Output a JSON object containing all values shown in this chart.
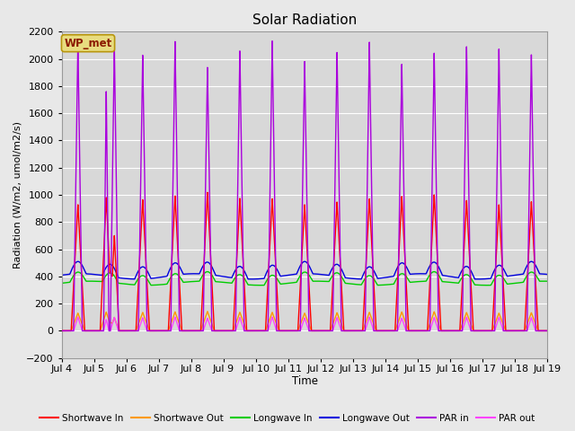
{
  "title": "Solar Radiation",
  "ylabel": "Radiation (W/m2, umol/m2/s)",
  "xlabel": "Time",
  "ylim": [
    -200,
    2200
  ],
  "yticks": [
    -200,
    0,
    200,
    400,
    600,
    800,
    1000,
    1200,
    1400,
    1600,
    1800,
    2000,
    2200
  ],
  "total_days": 15,
  "xtick_labels": [
    "Jul 4",
    "Jul 5",
    "Jul 6",
    "Jul 7",
    "Jul 8",
    "Jul 9",
    "Jul 10",
    "Jul 11",
    "Jul 12",
    "Jul 13",
    "Jul 14",
    "Jul 15",
    "Jul 16",
    "Jul 17",
    "Jul 18",
    "Jul 19"
  ],
  "background_color": "#d8d8d8",
  "figure_background": "#e8e8e8",
  "grid_color": "#ffffff",
  "annotation_text": "WP_met",
  "annotation_bg": "#e8dc80",
  "annotation_border": "#8b4513",
  "series": {
    "shortwave_in": {
      "color": "#ff0000",
      "label": "Shortwave In",
      "lw": 1.0
    },
    "shortwave_out": {
      "color": "#ff9900",
      "label": "Shortwave Out",
      "lw": 1.0
    },
    "longwave_in": {
      "color": "#00cc00",
      "label": "Longwave In",
      "lw": 1.0
    },
    "longwave_out": {
      "color": "#0000dd",
      "label": "Longwave Out",
      "lw": 1.0
    },
    "par_in": {
      "color": "#aa00dd",
      "label": "PAR in",
      "lw": 1.0
    },
    "par_out": {
      "color": "#ff44ff",
      "label": "PAR out",
      "lw": 1.0
    }
  }
}
